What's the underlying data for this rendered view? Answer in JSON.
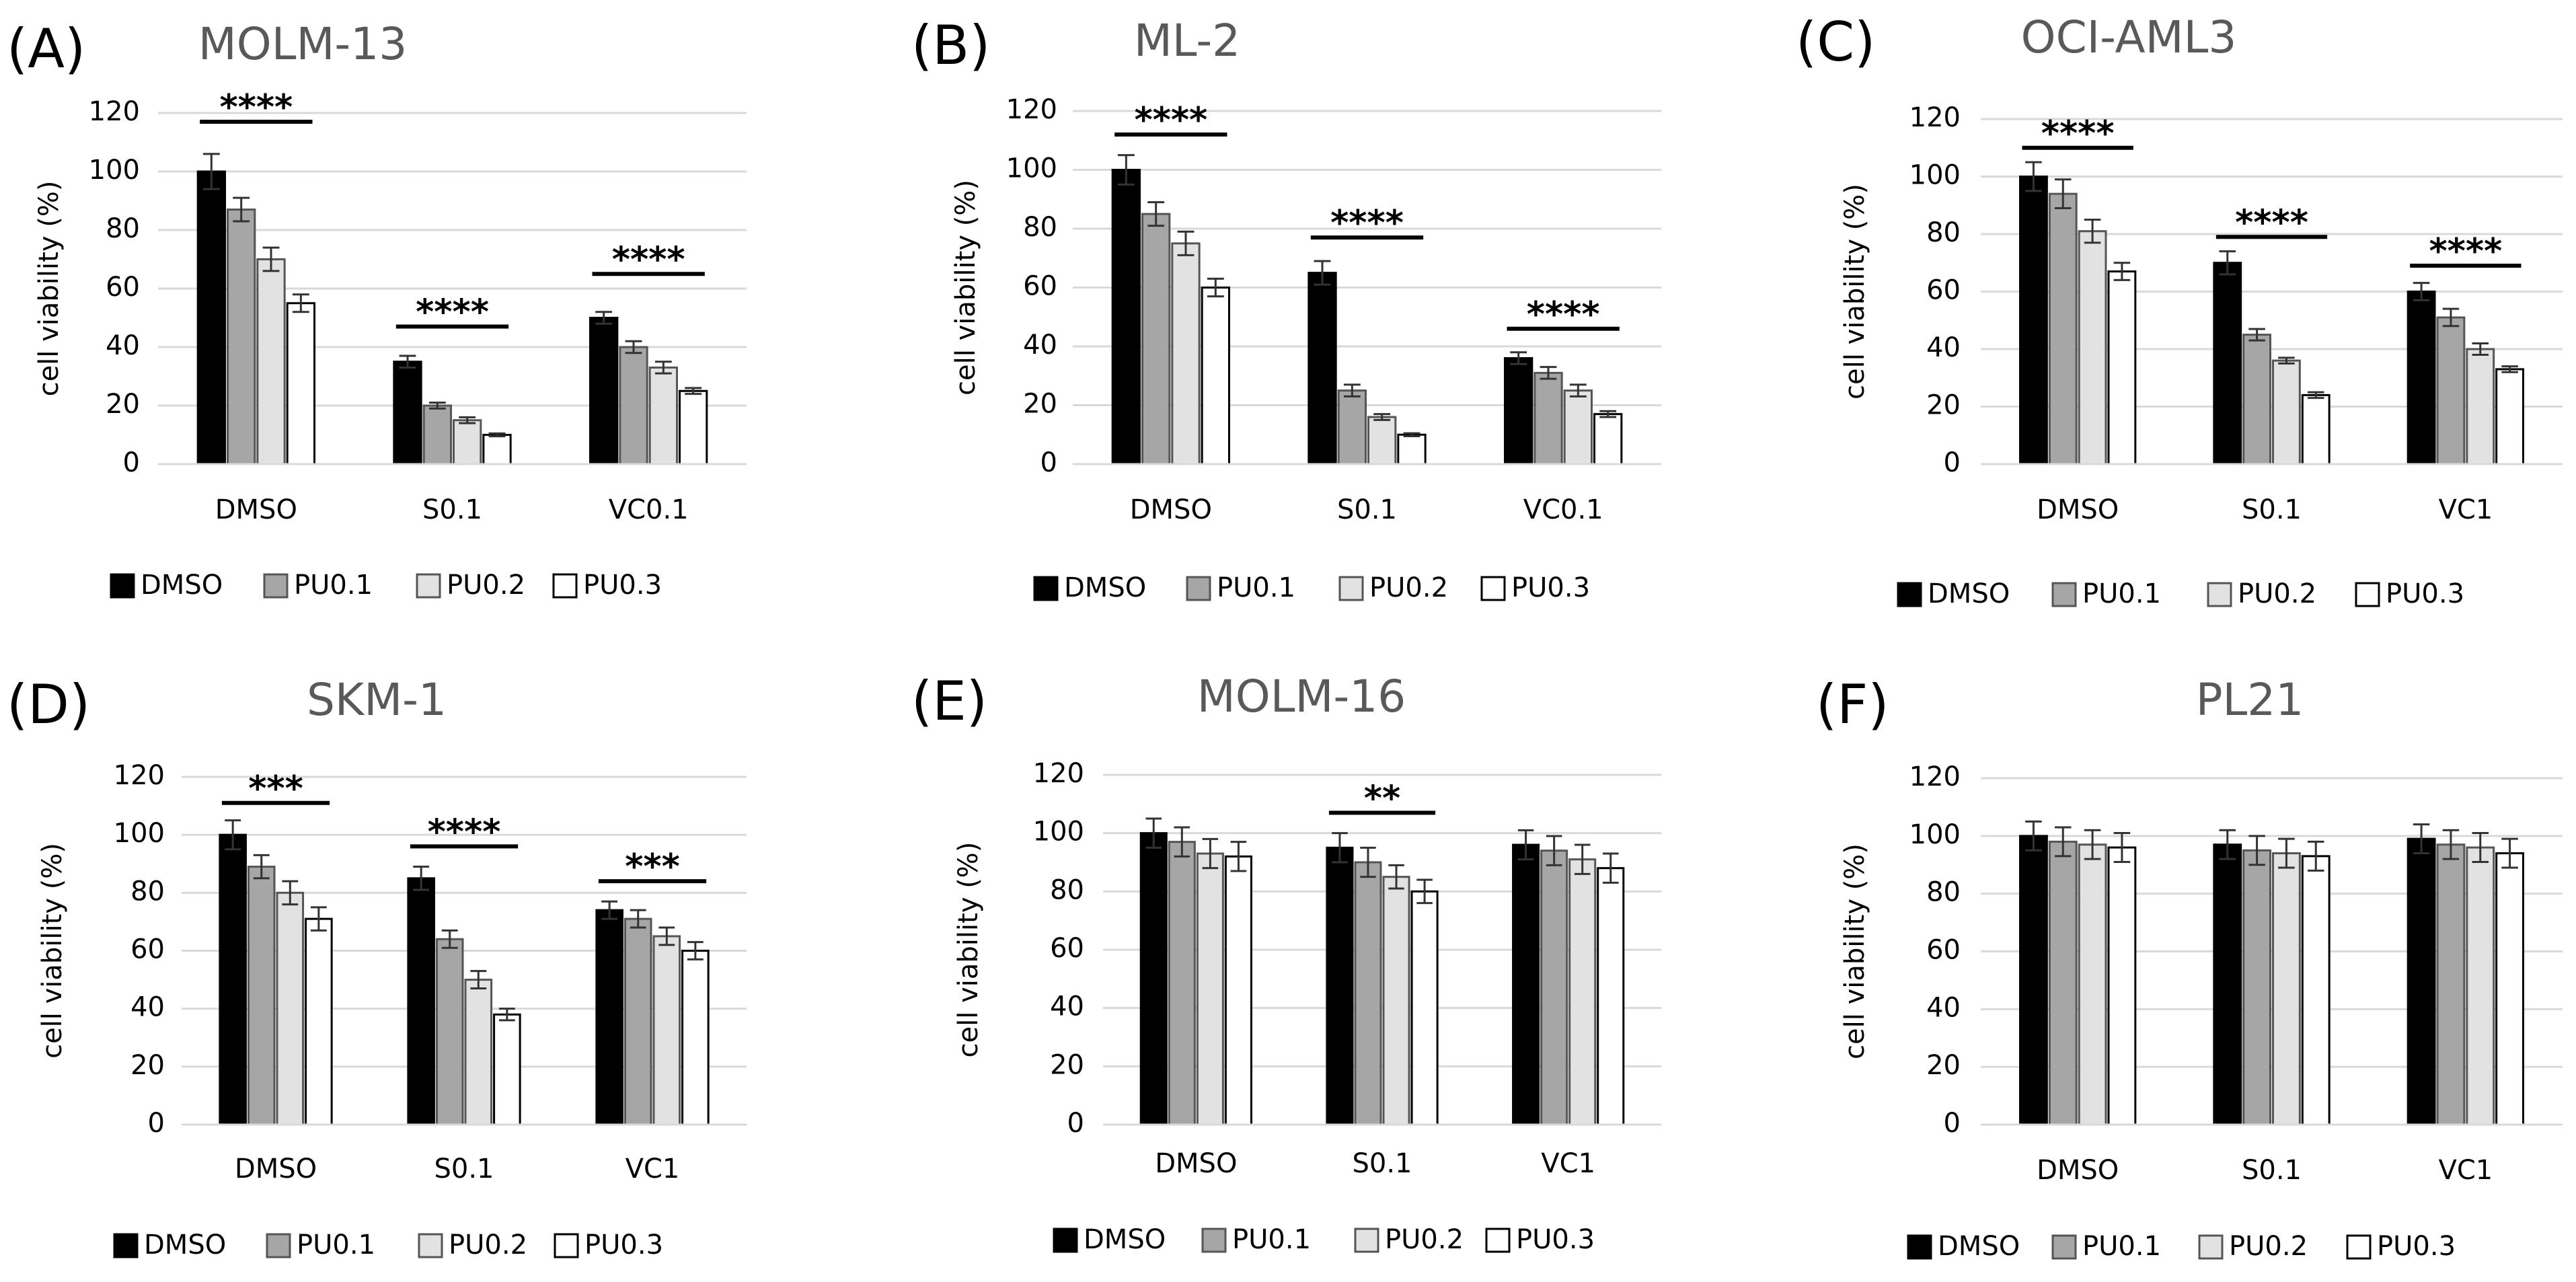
{
  "legend_colors": {
    "DMSO": "#000000",
    "PU0.1": "#a6a6a6",
    "PU0.2": "#e2e2e2",
    "PU0.3": "#ffffff"
  },
  "chart_data": [
    {
      "panel": "(A)",
      "title": "MOLM-13",
      "type": "bar",
      "ylabel": "cell viability (%)",
      "ylim": [
        0,
        120
      ],
      "yticks": [
        0,
        20,
        40,
        60,
        80,
        100,
        120
      ],
      "grid": true,
      "legend_position": "bottom",
      "categories": [
        "DMSO",
        "S0.1",
        "VC0.1"
      ],
      "series": [
        {
          "name": "DMSO",
          "values": [
            100,
            35,
            50
          ],
          "errors": [
            6,
            2,
            2
          ]
        },
        {
          "name": "PU0.1",
          "values": [
            87,
            20,
            40
          ],
          "errors": [
            4,
            1,
            2
          ]
        },
        {
          "name": "PU0.2",
          "values": [
            70,
            15,
            33
          ],
          "errors": [
            4,
            1,
            2
          ]
        },
        {
          "name": "PU0.3",
          "values": [
            55,
            10,
            25
          ],
          "errors": [
            3,
            0.5,
            1
          ]
        }
      ],
      "significance": [
        {
          "category": 0,
          "label": "****",
          "y": 117
        },
        {
          "category": 1,
          "label": "****",
          "y": 47
        },
        {
          "category": 2,
          "label": "****",
          "y": 65
        }
      ]
    },
    {
      "panel": "(B)",
      "title": "ML-2",
      "type": "bar",
      "ylabel": "cell viability (%)",
      "ylim": [
        0,
        120
      ],
      "yticks": [
        0,
        20,
        40,
        60,
        80,
        100,
        120
      ],
      "grid": true,
      "legend_position": "bottom",
      "categories": [
        "DMSO",
        "S0.1",
        "VC0.1"
      ],
      "series": [
        {
          "name": "DMSO",
          "values": [
            100,
            65,
            36
          ],
          "errors": [
            5,
            4,
            2
          ]
        },
        {
          "name": "PU0.1",
          "values": [
            85,
            25,
            31
          ],
          "errors": [
            4,
            2,
            2
          ]
        },
        {
          "name": "PU0.2",
          "values": [
            75,
            16,
            25
          ],
          "errors": [
            4,
            1,
            2
          ]
        },
        {
          "name": "PU0.3",
          "values": [
            60,
            10,
            17
          ],
          "errors": [
            3,
            0.5,
            1
          ]
        }
      ],
      "significance": [
        {
          "category": 0,
          "label": "****",
          "y": 112
        },
        {
          "category": 1,
          "label": "****",
          "y": 77
        },
        {
          "category": 2,
          "label": "****",
          "y": 46
        }
      ]
    },
    {
      "panel": "(C)",
      "title": "OCI-AML3",
      "type": "bar",
      "ylabel": "cell viability (%)",
      "ylim": [
        0,
        120
      ],
      "yticks": [
        0,
        20,
        40,
        60,
        80,
        100,
        120
      ],
      "grid": true,
      "legend_position": "bottom",
      "categories": [
        "DMSO",
        "S0.1",
        "VC1"
      ],
      "series": [
        {
          "name": "DMSO",
          "values": [
            100,
            70,
            60
          ],
          "errors": [
            5,
            4,
            3
          ]
        },
        {
          "name": "PU0.1",
          "values": [
            94,
            45,
            51
          ],
          "errors": [
            5,
            2,
            3
          ]
        },
        {
          "name": "PU0.2",
          "values": [
            81,
            36,
            40
          ],
          "errors": [
            4,
            1,
            2
          ]
        },
        {
          "name": "PU0.3",
          "values": [
            67,
            24,
            33
          ],
          "errors": [
            3,
            1,
            1
          ]
        }
      ],
      "significance": [
        {
          "category": 0,
          "label": "****",
          "y": 110
        },
        {
          "category": 1,
          "label": "****",
          "y": 79
        },
        {
          "category": 2,
          "label": "****",
          "y": 69
        }
      ]
    },
    {
      "panel": "(D)",
      "title": "SKM-1",
      "type": "bar",
      "ylabel": "cell viability (%)",
      "ylim": [
        0,
        120
      ],
      "yticks": [
        0,
        20,
        40,
        60,
        80,
        100,
        120
      ],
      "grid": true,
      "legend_position": "bottom",
      "categories": [
        "DMSO",
        "S0.1",
        "VC1"
      ],
      "series": [
        {
          "name": "DMSO",
          "values": [
            100,
            85,
            74
          ],
          "errors": [
            5,
            4,
            3
          ]
        },
        {
          "name": "PU0.1",
          "values": [
            89,
            64,
            71
          ],
          "errors": [
            4,
            3,
            3
          ]
        },
        {
          "name": "PU0.2",
          "values": [
            80,
            50,
            65
          ],
          "errors": [
            4,
            3,
            3
          ]
        },
        {
          "name": "PU0.3",
          "values": [
            71,
            38,
            60
          ],
          "errors": [
            4,
            2,
            3
          ]
        }
      ],
      "significance": [
        {
          "category": 0,
          "label": "***",
          "y": 111
        },
        {
          "category": 1,
          "label": "****",
          "y": 96
        },
        {
          "category": 2,
          "label": "***",
          "y": 84
        }
      ]
    },
    {
      "panel": "(E)",
      "title": "MOLM-16",
      "type": "bar",
      "ylabel": "cell viability (%)",
      "ylim": [
        0,
        120
      ],
      "yticks": [
        0,
        20,
        40,
        60,
        80,
        100,
        120
      ],
      "grid": true,
      "legend_position": "bottom",
      "categories": [
        "DMSO",
        "S0.1",
        "VC1"
      ],
      "series": [
        {
          "name": "DMSO",
          "values": [
            100,
            95,
            96
          ],
          "errors": [
            5,
            5,
            5
          ]
        },
        {
          "name": "PU0.1",
          "values": [
            97,
            90,
            94
          ],
          "errors": [
            5,
            5,
            5
          ]
        },
        {
          "name": "PU0.2",
          "values": [
            93,
            85,
            91
          ],
          "errors": [
            5,
            4,
            5
          ]
        },
        {
          "name": "PU0.3",
          "values": [
            92,
            80,
            88
          ],
          "errors": [
            5,
            4,
            5
          ]
        }
      ],
      "significance": [
        {
          "category": 1,
          "label": "**",
          "y": 107
        }
      ]
    },
    {
      "panel": "(F)",
      "title": "PL21",
      "type": "bar",
      "ylabel": "cell viability (%)",
      "ylim": [
        0,
        120
      ],
      "yticks": [
        0,
        20,
        40,
        60,
        80,
        100,
        120
      ],
      "grid": true,
      "legend_position": "bottom",
      "categories": [
        "DMSO",
        "S0.1",
        "VC1"
      ],
      "series": [
        {
          "name": "DMSO",
          "values": [
            100,
            97,
            99
          ],
          "errors": [
            5,
            5,
            5
          ]
        },
        {
          "name": "PU0.1",
          "values": [
            98,
            95,
            97
          ],
          "errors": [
            5,
            5,
            5
          ]
        },
        {
          "name": "PU0.2",
          "values": [
            97,
            94,
            96
          ],
          "errors": [
            5,
            5,
            5
          ]
        },
        {
          "name": "PU0.3",
          "values": [
            96,
            93,
            94
          ],
          "errors": [
            5,
            5,
            5
          ]
        }
      ],
      "significance": []
    }
  ]
}
